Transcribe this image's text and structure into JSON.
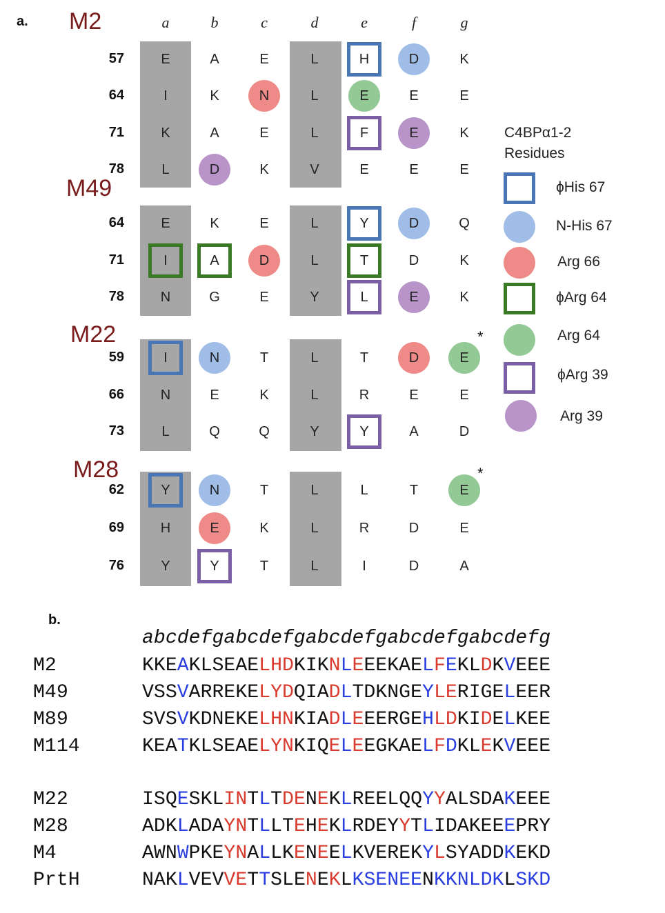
{
  "panel_a": {
    "label": "a.",
    "columns": [
      "a",
      "b",
      "c",
      "d",
      "e",
      "f",
      "g"
    ],
    "groups": [
      {
        "name": "M2",
        "rows": [
          {
            "num": "57",
            "res": [
              "E",
              "A",
              "E",
              "L",
              "H",
              "D",
              "K"
            ]
          },
          {
            "num": "64",
            "res": [
              "I",
              "K",
              "N",
              "L",
              "E",
              "E",
              "E"
            ]
          },
          {
            "num": "71",
            "res": [
              "K",
              "A",
              "E",
              "L",
              "F",
              "E",
              "K"
            ]
          },
          {
            "num": "78",
            "res": [
              "L",
              "D",
              "K",
              "V",
              "E",
              "E",
              "E"
            ]
          }
        ]
      },
      {
        "name": "M49",
        "rows": [
          {
            "num": "64",
            "res": [
              "E",
              "K",
              "E",
              "L",
              "Y",
              "D",
              "Q"
            ]
          },
          {
            "num": "71",
            "res": [
              "I",
              "A",
              "D",
              "L",
              "T",
              "D",
              "K"
            ]
          },
          {
            "num": "78",
            "res": [
              "N",
              "G",
              "E",
              "Y",
              "L",
              "E",
              "K"
            ]
          }
        ]
      },
      {
        "name": "M22",
        "rows": [
          {
            "num": "59",
            "res": [
              "I",
              "N",
              "T",
              "L",
              "T",
              "D",
              "E"
            ]
          },
          {
            "num": "66",
            "res": [
              "N",
              "E",
              "K",
              "L",
              "R",
              "E",
              "E"
            ]
          },
          {
            "num": "73",
            "res": [
              "L",
              "Q",
              "Q",
              "Y",
              "Y",
              "A",
              "D"
            ]
          }
        ]
      },
      {
        "name": "M28",
        "rows": [
          {
            "num": "62",
            "res": [
              "Y",
              "N",
              "T",
              "L",
              "L",
              "T",
              "E"
            ]
          },
          {
            "num": "69",
            "res": [
              "H",
              "E",
              "K",
              "L",
              "R",
              "D",
              "E"
            ]
          },
          {
            "num": "76",
            "res": [
              "Y",
              "Y",
              "T",
              "L",
              "I",
              "D",
              "A"
            ]
          }
        ]
      }
    ],
    "asterisk": "*",
    "legend": {
      "title_line1": "C4BPα1-2",
      "title_line2": "Residues",
      "items": [
        {
          "label": "ϕHis 67",
          "shape": "square",
          "color": "#4a76b5"
        },
        {
          "label": "N-His 67",
          "shape": "circle",
          "color": "#9fbde6"
        },
        {
          "label": "Arg 66",
          "shape": "circle",
          "color": "#ee8a87"
        },
        {
          "label": "ϕArg 64",
          "shape": "square",
          "color": "#3b7a25"
        },
        {
          "label": "Arg 64",
          "shape": "circle",
          "color": "#93c995"
        },
        {
          "label": "ϕArg 39",
          "shape": "square",
          "color": "#7a5ea6"
        },
        {
          "label": "Arg 39",
          "shape": "circle",
          "color": "#b894c8"
        }
      ]
    }
  },
  "panel_b": {
    "label": "b.",
    "heptad_header": "abcdefgabcdefgabcdefgabcdefgabcdefg",
    "sequences_group1": [
      {
        "name": "M2",
        "seq": "KKEAKLSEAELHDKIKNLEEEKAELFEKLDKVEEE"
      },
      {
        "name": "M49",
        "seq": "VSSVARREKELYDQIADLTDKNGEYLERIGELEER"
      },
      {
        "name": "M89",
        "seq": "SVSVKDNEKELHNKIADLEEERGEHLDKIDELKEE"
      },
      {
        "name": "M114",
        "seq": "KEATKLSEAELYNKIQELEEGKAELFDKLEKVEEE"
      }
    ],
    "sequences_group2": [
      {
        "name": "M22",
        "seq": "ISQESKLINTLTDENEKLREELQQYYALSDAKEEE"
      },
      {
        "name": "M28",
        "seq": "ADKLADAYNTLLTEHEKLRDEYYTLIDAKEEEPRY"
      },
      {
        "name": "M4",
        "seq": "AWNWPKEYNALLKENEELKVEREKYLSYADDKEKD"
      },
      {
        "name": "PrtH",
        "seq": "NAKLVEVVETTSLENEKLKSENEENKKNLDKLSKD"
      }
    ],
    "colors": {
      "red": "#d93a2e",
      "blue": "#2a3ee0",
      "black": "#111111"
    }
  }
}
